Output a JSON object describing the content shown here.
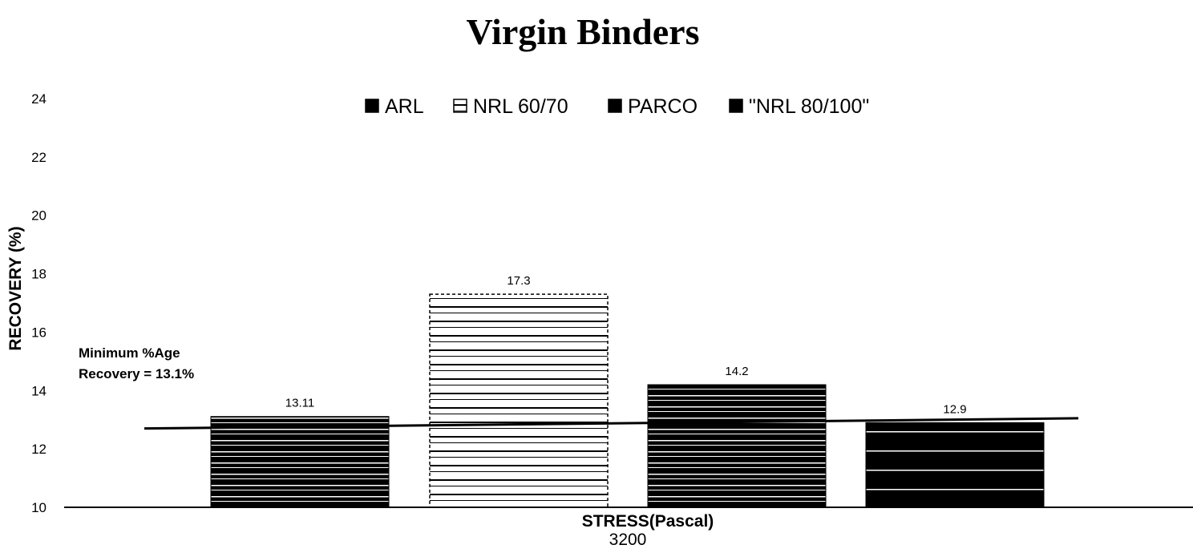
{
  "chart_data": {
    "type": "bar",
    "title": "Virgin Binders",
    "xlabel": "STRESS(Pascal)",
    "ylabel": "RECOVERY (%)",
    "categories": [
      "3200"
    ],
    "ylim": [
      10,
      24
    ],
    "yticks": [
      "10",
      "12",
      "14",
      "16",
      "18",
      "20",
      "22",
      "24"
    ],
    "grid": false,
    "legend_position": "top",
    "series": [
      {
        "name": "ARL",
        "values": [
          13.11
        ],
        "label": "13.11",
        "pattern": "dark-stripes",
        "color": "#000000"
      },
      {
        "name": "NRL 60/70",
        "values": [
          17.3
        ],
        "label": "17.3",
        "pattern": "light-stripes",
        "color": "#ffffff"
      },
      {
        "name": "PARCO",
        "values": [
          14.2
        ],
        "label": "14.2",
        "pattern": "dark-stripes",
        "color": "#000000"
      },
      {
        "name": "\"NRL 80/100\"",
        "values": [
          12.9
        ],
        "label": "12.9",
        "pattern": "solid-sparse",
        "color": "#000000"
      }
    ],
    "annotation": {
      "lines": [
        "Minimum %Age",
        "Recovery = 13.1%"
      ]
    },
    "reference_line": {
      "start_value": 12.7,
      "end_value": 13.05
    }
  }
}
